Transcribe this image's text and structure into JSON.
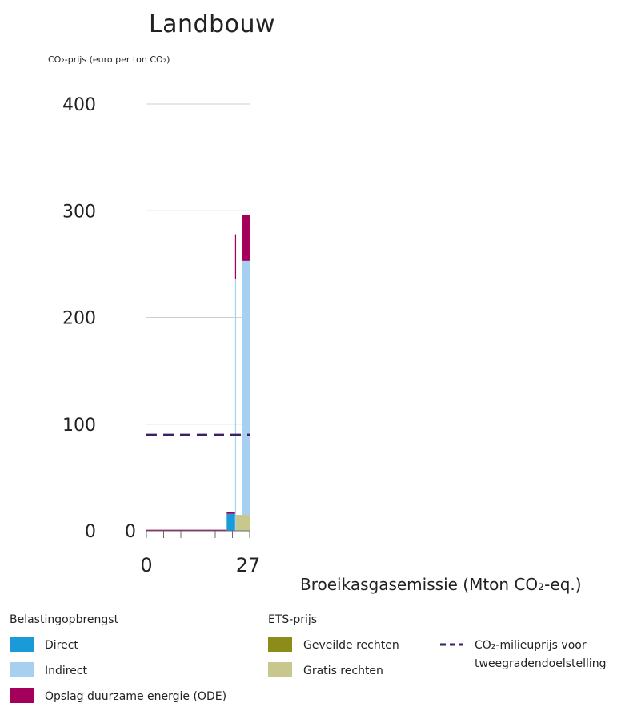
{
  "chart_data": {
    "type": "bar",
    "title": "Landbouw",
    "ylabel": "CO₂-prijs (euro per ton CO₂)",
    "xlabel": "Broeikasgasemissie (Mton CO₂-eq.)",
    "ylim": [
      0,
      400
    ],
    "xlim": [
      0,
      27
    ],
    "ytick_labels": [
      "0",
      "100",
      "200",
      "300",
      "400"
    ],
    "ytick_values": [
      0,
      100,
      200,
      300,
      400
    ],
    "x_origin_label": "0",
    "xtick_labels": [
      "0",
      "27"
    ],
    "xtick_values": [
      0,
      27
    ],
    "grid": true,
    "series": [
      {
        "name": "Direct",
        "color": "#1a9ad6"
      },
      {
        "name": "Indirect",
        "color": "#a6cff0"
      },
      {
        "name": "Opslag duurzame energie (ODE)",
        "color": "#a4005b"
      },
      {
        "name": "Geveilde rechten",
        "color": "#8b8c1a"
      },
      {
        "name": "Gratis rechten",
        "color": "#c8c88e"
      }
    ],
    "bars": [
      {
        "x0": 0,
        "x1": 21,
        "segments": [
          {
            "series": "Opslag duurzame energie (ODE)",
            "y0": 0,
            "y1": 1
          }
        ]
      },
      {
        "x0": 21,
        "x1": 23.2,
        "segments": [
          {
            "series": "Direct",
            "y0": 0,
            "y1": 16
          },
          {
            "series": "Opslag duurzame energie (ODE)",
            "y0": 16,
            "y1": 18
          }
        ]
      },
      {
        "x0": 23.2,
        "x1": 23.45,
        "segments": [
          {
            "series": "Indirect",
            "y0": 0,
            "y1": 278
          },
          {
            "series": "Opslag duurzame energie (ODE)",
            "y0": 236,
            "y1": 278
          }
        ]
      },
      {
        "x0": 23.45,
        "x1": 25,
        "segments": [
          {
            "series": "Gratis rechten",
            "y0": 0,
            "y1": 15
          }
        ]
      },
      {
        "x0": 25,
        "x1": 27,
        "segments": [
          {
            "series": "Gratis rechten",
            "y0": 0,
            "y1": 15
          },
          {
            "series": "Indirect",
            "y0": 15,
            "y1": 253
          },
          {
            "series": "Opslag duurzame energie (ODE)",
            "y0": 253,
            "y1": 296
          }
        ]
      }
    ],
    "reference_line": {
      "name": "CO₂-milieuprijs voor tweegradendoelstelling",
      "y": 90,
      "color": "#3e1f63",
      "style": "dashed"
    }
  },
  "legend": {
    "belasting_heading": "Belastingopbrengst",
    "ets_heading": "ETS-prijs",
    "items": {
      "direct": "Direct",
      "indirect": "Indirect",
      "ode": "Opslag duurzame energie (ODE)",
      "geveilde": "Geveilde rechten",
      "gratis": "Gratis rechten",
      "milieuprijs_line1": "CO₂-milieuprijs voor",
      "milieuprijs_line2": "tweegradendoelstelling"
    }
  }
}
